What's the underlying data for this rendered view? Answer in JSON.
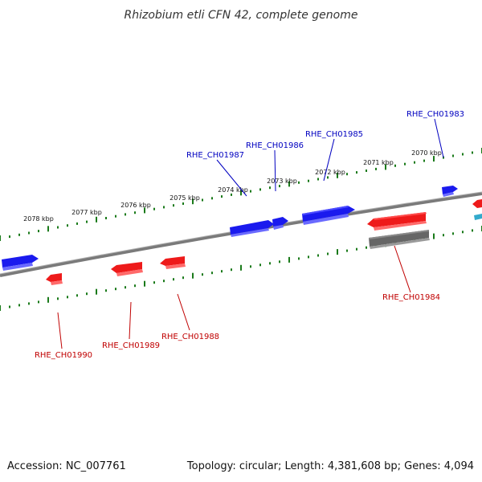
{
  "title": "Rhizobium etli CFN 42, complete genome",
  "footer": {
    "accession": "Accession: NC_007761",
    "summary": "Topology: circular; Length: 4,381,608 bp; Genes: 4,094"
  },
  "scale_labels": [
    "2078 kbp",
    "2077 kbp",
    "2076 kbp",
    "2075 kbp",
    "2074 kbp",
    "2073 kbp",
    "2072 kbp",
    "2071 kbp",
    "2070 kbp"
  ],
  "gene_labels": [
    "RHE_CH01983",
    "RHE_CH01985",
    "RHE_CH01986",
    "RHE_CH01987",
    "RHE_CH01984",
    "RHE_CH01988",
    "RHE_CH01989",
    "RHE_CH01990"
  ],
  "colors": {
    "forward_gene": "#1a1aee",
    "reverse_gene": "#ee1a1a",
    "other_feature": "#666666",
    "tick": "#1a7a1a",
    "forward_label": "#0000c0",
    "reverse_label": "#c00000"
  }
}
